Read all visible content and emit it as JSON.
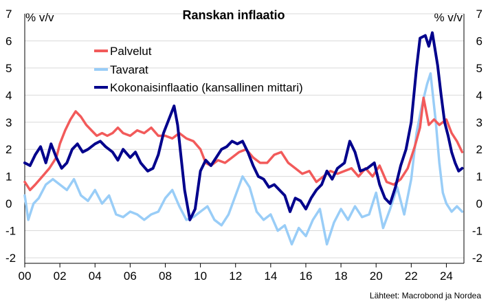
{
  "chart_data": {
    "type": "line",
    "title": "Ranskan inflaatio",
    "ylabel_left": "% v/v",
    "ylabel_right": "% v/v",
    "ylim": [
      -2,
      7
    ],
    "yticks": [
      -2,
      -1,
      0,
      1,
      2,
      3,
      4,
      5,
      6,
      7
    ],
    "xlim": [
      2000,
      2025
    ],
    "xticks": [
      {
        "x": 2000,
        "label": "00"
      },
      {
        "x": 2002,
        "label": "02"
      },
      {
        "x": 2004,
        "label": "04"
      },
      {
        "x": 2006,
        "label": "06"
      },
      {
        "x": 2008,
        "label": "08"
      },
      {
        "x": 2010,
        "label": "10"
      },
      {
        "x": 2012,
        "label": "12"
      },
      {
        "x": 2014,
        "label": "14"
      },
      {
        "x": 2016,
        "label": "16"
      },
      {
        "x": 2018,
        "label": "18"
      },
      {
        "x": 2020,
        "label": "20"
      },
      {
        "x": 2022,
        "label": "22"
      },
      {
        "x": 2024,
        "label": "24"
      }
    ],
    "grid": true,
    "legend_position": "top-left",
    "source": "Lähteet: Macrobond ja Nordea",
    "series": [
      {
        "name": "Palvelut",
        "color": "#f25a5a",
        "points": [
          [
            2000.0,
            0.8
          ],
          [
            2000.3,
            0.5
          ],
          [
            2000.6,
            0.7
          ],
          [
            2001.0,
            1.0
          ],
          [
            2001.4,
            1.3
          ],
          [
            2001.8,
            1.7
          ],
          [
            2002.0,
            2.2
          ],
          [
            2002.3,
            2.7
          ],
          [
            2002.6,
            3.1
          ],
          [
            2002.9,
            3.4
          ],
          [
            2003.2,
            3.2
          ],
          [
            2003.5,
            2.9
          ],
          [
            2003.8,
            2.7
          ],
          [
            2004.1,
            2.5
          ],
          [
            2004.4,
            2.6
          ],
          [
            2004.7,
            2.5
          ],
          [
            2005.0,
            2.6
          ],
          [
            2005.3,
            2.8
          ],
          [
            2005.6,
            2.6
          ],
          [
            2006.0,
            2.5
          ],
          [
            2006.4,
            2.7
          ],
          [
            2006.8,
            2.6
          ],
          [
            2007.2,
            2.8
          ],
          [
            2007.6,
            2.5
          ],
          [
            2008.0,
            2.5
          ],
          [
            2008.4,
            2.4
          ],
          [
            2008.8,
            2.6
          ],
          [
            2009.2,
            2.4
          ],
          [
            2009.6,
            2.3
          ],
          [
            2010.0,
            2.0
          ],
          [
            2010.3,
            1.5
          ],
          [
            2010.6,
            1.4
          ],
          [
            2011.0,
            1.6
          ],
          [
            2011.4,
            1.5
          ],
          [
            2011.8,
            1.7
          ],
          [
            2012.2,
            1.9
          ],
          [
            2012.6,
            2.0
          ],
          [
            2013.0,
            1.7
          ],
          [
            2013.4,
            1.5
          ],
          [
            2013.8,
            1.5
          ],
          [
            2014.2,
            1.8
          ],
          [
            2014.6,
            1.9
          ],
          [
            2015.0,
            1.5
          ],
          [
            2015.4,
            1.3
          ],
          [
            2015.8,
            1.1
          ],
          [
            2016.2,
            1.2
          ],
          [
            2016.6,
            0.8
          ],
          [
            2017.0,
            1.0
          ],
          [
            2017.4,
            1.2
          ],
          [
            2017.8,
            1.1
          ],
          [
            2018.2,
            1.2
          ],
          [
            2018.6,
            1.3
          ],
          [
            2019.0,
            1.0
          ],
          [
            2019.4,
            1.3
          ],
          [
            2019.8,
            1.0
          ],
          [
            2020.2,
            1.4
          ],
          [
            2020.6,
            0.8
          ],
          [
            2021.0,
            0.7
          ],
          [
            2021.4,
            0.9
          ],
          [
            2021.8,
            1.3
          ],
          [
            2022.2,
            2.1
          ],
          [
            2022.5,
            2.8
          ],
          [
            2022.7,
            3.9
          ],
          [
            2023.0,
            2.9
          ],
          [
            2023.3,
            3.1
          ],
          [
            2023.6,
            2.9
          ],
          [
            2024.0,
            3.1
          ],
          [
            2024.3,
            2.6
          ],
          [
            2024.6,
            2.3
          ],
          [
            2024.9,
            1.9
          ]
        ]
      },
      {
        "name": "Tavarat",
        "color": "#99cdf7",
        "points": [
          [
            2000.0,
            0.3
          ],
          [
            2000.2,
            -0.6
          ],
          [
            2000.5,
            0.0
          ],
          [
            2000.8,
            0.2
          ],
          [
            2001.2,
            0.7
          ],
          [
            2001.6,
            0.9
          ],
          [
            2002.0,
            0.7
          ],
          [
            2002.4,
            0.5
          ],
          [
            2002.8,
            0.9
          ],
          [
            2003.2,
            0.3
          ],
          [
            2003.6,
            0.1
          ],
          [
            2004.0,
            0.5
          ],
          [
            2004.4,
            0.0
          ],
          [
            2004.8,
            0.3
          ],
          [
            2005.2,
            -0.4
          ],
          [
            2005.6,
            -0.5
          ],
          [
            2006.0,
            -0.3
          ],
          [
            2006.4,
            -0.4
          ],
          [
            2006.8,
            -0.6
          ],
          [
            2007.2,
            -0.4
          ],
          [
            2007.6,
            -0.3
          ],
          [
            2008.0,
            0.2
          ],
          [
            2008.4,
            0.5
          ],
          [
            2008.8,
            -0.1
          ],
          [
            2009.2,
            -0.6
          ],
          [
            2009.6,
            -0.5
          ],
          [
            2010.0,
            -0.3
          ],
          [
            2010.4,
            -0.1
          ],
          [
            2010.8,
            -0.6
          ],
          [
            2011.2,
            -0.8
          ],
          [
            2011.6,
            -0.4
          ],
          [
            2012.0,
            0.3
          ],
          [
            2012.4,
            1.0
          ],
          [
            2012.8,
            0.6
          ],
          [
            2013.2,
            -0.3
          ],
          [
            2013.6,
            -0.6
          ],
          [
            2014.0,
            -0.4
          ],
          [
            2014.4,
            -1.0
          ],
          [
            2014.8,
            -0.8
          ],
          [
            2015.2,
            -1.5
          ],
          [
            2015.6,
            -0.9
          ],
          [
            2016.0,
            -1.2
          ],
          [
            2016.4,
            -0.6
          ],
          [
            2016.8,
            -0.2
          ],
          [
            2017.2,
            -1.5
          ],
          [
            2017.6,
            -0.7
          ],
          [
            2018.0,
            -0.2
          ],
          [
            2018.4,
            -0.6
          ],
          [
            2018.8,
            -0.1
          ],
          [
            2019.2,
            -0.5
          ],
          [
            2019.6,
            -0.4
          ],
          [
            2020.0,
            0.4
          ],
          [
            2020.4,
            -0.9
          ],
          [
            2020.8,
            -0.2
          ],
          [
            2021.2,
            0.6
          ],
          [
            2021.6,
            -0.4
          ],
          [
            2022.0,
            0.9
          ],
          [
            2022.3,
            2.6
          ],
          [
            2022.6,
            3.6
          ],
          [
            2022.9,
            4.4
          ],
          [
            2023.1,
            4.8
          ],
          [
            2023.4,
            3.0
          ],
          [
            2023.6,
            1.5
          ],
          [
            2023.8,
            0.4
          ],
          [
            2024.0,
            0.0
          ],
          [
            2024.3,
            -0.3
          ],
          [
            2024.6,
            -0.1
          ],
          [
            2024.9,
            -0.3
          ]
        ]
      },
      {
        "name": "Kokonaisinflaatio (kansallinen mittari)",
        "color": "#00008c",
        "points": [
          [
            2000.0,
            1.5
          ],
          [
            2000.3,
            1.4
          ],
          [
            2000.6,
            1.8
          ],
          [
            2000.9,
            2.1
          ],
          [
            2001.2,
            1.5
          ],
          [
            2001.5,
            2.2
          ],
          [
            2001.8,
            1.7
          ],
          [
            2002.1,
            1.3
          ],
          [
            2002.4,
            1.5
          ],
          [
            2002.7,
            2.0
          ],
          [
            2003.0,
            2.2
          ],
          [
            2003.3,
            1.9
          ],
          [
            2003.6,
            2.0
          ],
          [
            2004.0,
            2.2
          ],
          [
            2004.3,
            2.3
          ],
          [
            2004.6,
            2.1
          ],
          [
            2005.0,
            1.9
          ],
          [
            2005.3,
            1.6
          ],
          [
            2005.6,
            2.0
          ],
          [
            2006.0,
            1.7
          ],
          [
            2006.3,
            1.9
          ],
          [
            2006.6,
            1.5
          ],
          [
            2007.0,
            1.2
          ],
          [
            2007.3,
            1.3
          ],
          [
            2007.6,
            1.8
          ],
          [
            2007.9,
            2.6
          ],
          [
            2008.2,
            3.1
          ],
          [
            2008.5,
            3.6
          ],
          [
            2008.7,
            2.9
          ],
          [
            2008.9,
            1.7
          ],
          [
            2009.1,
            0.5
          ],
          [
            2009.4,
            -0.6
          ],
          [
            2009.7,
            -0.2
          ],
          [
            2010.0,
            1.2
          ],
          [
            2010.3,
            1.6
          ],
          [
            2010.6,
            1.4
          ],
          [
            2010.9,
            1.7
          ],
          [
            2011.2,
            2.0
          ],
          [
            2011.5,
            2.1
          ],
          [
            2011.8,
            2.3
          ],
          [
            2012.1,
            2.2
          ],
          [
            2012.4,
            2.3
          ],
          [
            2012.7,
            1.9
          ],
          [
            2013.0,
            1.4
          ],
          [
            2013.3,
            1.0
          ],
          [
            2013.6,
            0.9
          ],
          [
            2013.9,
            0.6
          ],
          [
            2014.2,
            0.7
          ],
          [
            2014.5,
            0.5
          ],
          [
            2014.8,
            0.3
          ],
          [
            2015.1,
            -0.3
          ],
          [
            2015.4,
            0.2
          ],
          [
            2015.7,
            0.1
          ],
          [
            2016.0,
            -0.2
          ],
          [
            2016.3,
            0.2
          ],
          [
            2016.6,
            0.5
          ],
          [
            2016.9,
            0.7
          ],
          [
            2017.2,
            1.2
          ],
          [
            2017.5,
            0.9
          ],
          [
            2017.8,
            1.3
          ],
          [
            2018.2,
            1.5
          ],
          [
            2018.5,
            2.3
          ],
          [
            2018.8,
            1.9
          ],
          [
            2019.1,
            1.2
          ],
          [
            2019.5,
            1.3
          ],
          [
            2019.9,
            1.5
          ],
          [
            2020.2,
            0.7
          ],
          [
            2020.5,
            0.2
          ],
          [
            2020.8,
            0.0
          ],
          [
            2021.1,
            0.6
          ],
          [
            2021.4,
            1.4
          ],
          [
            2021.7,
            2.0
          ],
          [
            2022.0,
            3.0
          ],
          [
            2022.3,
            5.0
          ],
          [
            2022.5,
            6.1
          ],
          [
            2022.8,
            6.2
          ],
          [
            2023.0,
            5.8
          ],
          [
            2023.2,
            6.3
          ],
          [
            2023.5,
            5.1
          ],
          [
            2023.7,
            4.0
          ],
          [
            2023.9,
            3.0
          ],
          [
            2024.1,
            2.5
          ],
          [
            2024.3,
            1.9
          ],
          [
            2024.5,
            1.5
          ],
          [
            2024.7,
            1.2
          ],
          [
            2024.9,
            1.3
          ]
        ]
      }
    ]
  }
}
